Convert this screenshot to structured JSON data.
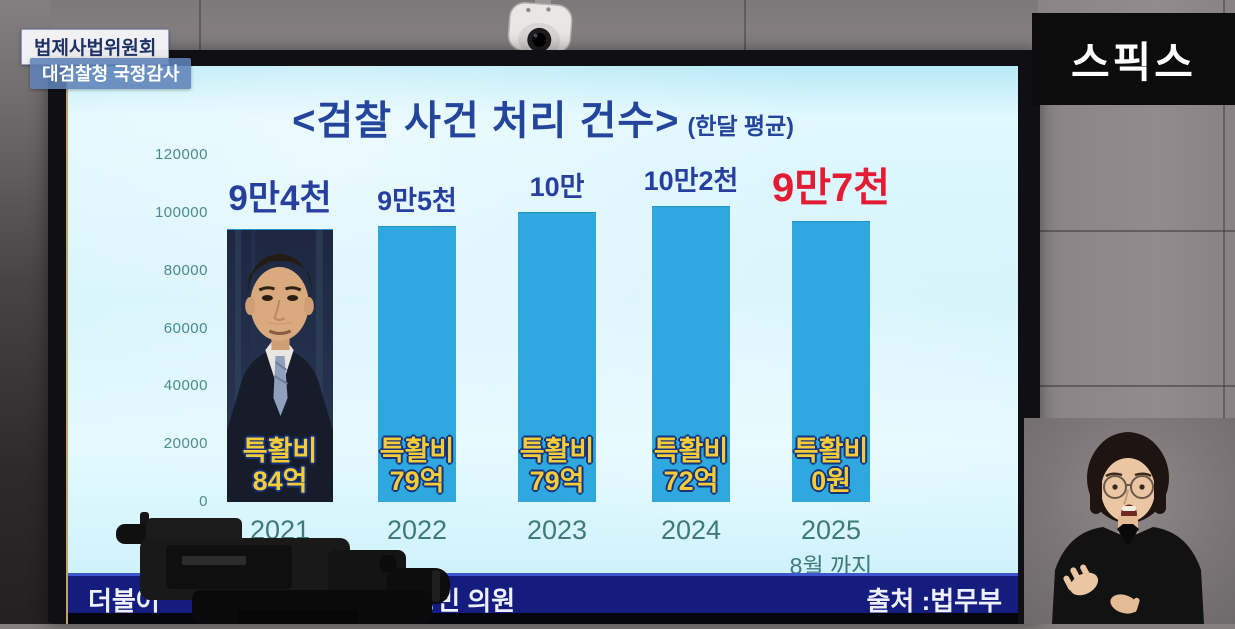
{
  "overlay": {
    "badge_committee": "법제사법위원회",
    "badge_audit": "대검찰청 국정감사",
    "channel_logo": "스픽스"
  },
  "slide": {
    "title": "<검찰 사건 처리 건수>",
    "title_suffix": "(한달 평균)",
    "footer_left_fragment_1": "더불어",
    "footer_left_fragment_2": "주(병) 김용민 의원",
    "footer_source": "출처 :법무부"
  },
  "chart_data": {
    "type": "bar",
    "title": "<검찰 사건 처리 건수>",
    "subtitle": "(한달 평균)",
    "categories": [
      "2021",
      "2022",
      "2023",
      "2024",
      "2025"
    ],
    "category_sublabels": [
      "",
      "",
      "",
      "",
      "8월 까지"
    ],
    "values": [
      94000,
      95000,
      100000,
      102000,
      97000
    ],
    "value_labels": [
      "9만4천",
      "9만5천",
      "10만",
      "10만2천",
      "9만7천"
    ],
    "annotations": [
      {
        "line1": "특활비",
        "line2": "84억"
      },
      {
        "line1": "특활비",
        "line2": "79억"
      },
      {
        "line1": "특활비",
        "line2": "79억"
      },
      {
        "line1": "특활비",
        "line2": "72억"
      },
      {
        "line1": "특활비",
        "line2": "0원"
      }
    ],
    "ylim": [
      0,
      120000
    ],
    "ytick_labels": [
      "120000",
      "100000",
      "80000",
      "60000",
      "40000",
      "20000",
      "0"
    ],
    "grid": false,
    "legend": "none",
    "bar_color": "#2fa8e0",
    "value_label_color": "#27409f",
    "annotation_color": "#f4cc38",
    "highlight_index": 4,
    "highlight_color": "#e41b32",
    "source": "출처 :법무부",
    "note": "first bar contains portrait photo of President Yoon Suk-yeol"
  }
}
